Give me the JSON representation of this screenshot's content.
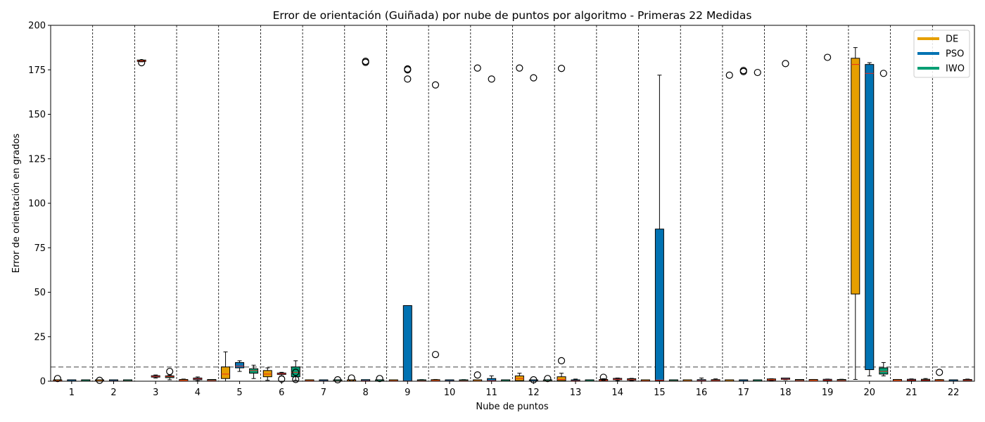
{
  "chart_data": {
    "type": "box",
    "title": "Error de orientación (Guiñada) por nube de puntos por algoritmo - Primeras 22 Medidas",
    "xlabel": "Nube de puntos",
    "ylabel": "Error de orientación en grados",
    "ylim": [
      0,
      200
    ],
    "yticks": [
      0,
      25,
      50,
      75,
      100,
      125,
      150,
      175,
      200
    ],
    "categories": [
      "1",
      "2",
      "3",
      "4",
      "5",
      "6",
      "7",
      "8",
      "9",
      "10",
      "11",
      "12",
      "13",
      "14",
      "15",
      "16",
      "17",
      "18",
      "19",
      "20",
      "21",
      "22"
    ],
    "reference_line": 8,
    "grid": "vertical dashed separators between groups",
    "legend_position": "top-right",
    "series": [
      {
        "name": "DE",
        "color": "#E69F00",
        "boxes": [
          {
            "whislo": 0,
            "q1": 0,
            "med": 0.2,
            "q3": 0.5,
            "whishi": 0.8,
            "fliers": [
              1.5
            ]
          },
          {
            "whislo": 0,
            "q1": 0,
            "med": 0.1,
            "q3": 0.2,
            "whishi": 0.4,
            "fliers": [
              0.5
            ]
          },
          {
            "whislo": 179.5,
            "q1": 179.7,
            "med": 180,
            "q3": 180.2,
            "whishi": 180.4,
            "fliers": [
              179
            ]
          },
          {
            "whislo": 0,
            "q1": 0.2,
            "med": 0.4,
            "q3": 0.7,
            "whishi": 1.2,
            "fliers": []
          },
          {
            "whislo": 0,
            "q1": 1.5,
            "med": 4,
            "q3": 8,
            "whishi": 16.5,
            "fliers": []
          },
          {
            "whislo": 0.5,
            "q1": 2.5,
            "med": 4,
            "q3": 6,
            "whishi": 7.5,
            "fliers": []
          },
          {
            "whislo": 0,
            "q1": 0,
            "med": 0.2,
            "q3": 0.5,
            "whishi": 0.8,
            "fliers": []
          },
          {
            "whislo": 0,
            "q1": 0,
            "med": 0.1,
            "q3": 0.3,
            "whishi": 0.6,
            "fliers": [
              1.8
            ]
          },
          {
            "whislo": 0,
            "q1": 0,
            "med": 0.2,
            "q3": 0.4,
            "whishi": 0.7,
            "fliers": []
          },
          {
            "whislo": 0,
            "q1": 0.1,
            "med": 0.3,
            "q3": 0.6,
            "whishi": 1,
            "fliers": [
              15,
              166.5
            ]
          },
          {
            "whislo": 0,
            "q1": 0,
            "med": 0.1,
            "q3": 0.2,
            "whishi": 0.4,
            "fliers": [
              3.5,
              176
            ]
          },
          {
            "whislo": 0,
            "q1": 0.3,
            "med": 1.5,
            "q3": 3,
            "whishi": 4.5,
            "fliers": [
              176
            ]
          },
          {
            "whislo": 0,
            "q1": 0.3,
            "med": 1,
            "q3": 2.5,
            "whishi": 4.5,
            "fliers": [
              11.5,
              175.8
            ]
          },
          {
            "whislo": 0,
            "q1": 0.2,
            "med": 0.5,
            "q3": 0.9,
            "whishi": 1.4,
            "fliers": [
              2.2
            ]
          },
          {
            "whislo": 0,
            "q1": 0,
            "med": 0.2,
            "q3": 0.4,
            "whishi": 0.7,
            "fliers": []
          },
          {
            "whislo": 0,
            "q1": 0,
            "med": 0.1,
            "q3": 0.3,
            "whishi": 0.5,
            "fliers": []
          },
          {
            "whislo": 0,
            "q1": 0,
            "med": 0.05,
            "q3": 0.1,
            "whishi": 0.2,
            "fliers": [
              172
            ]
          },
          {
            "whislo": 0.2,
            "q1": 0.5,
            "med": 0.8,
            "q3": 1.1,
            "whishi": 1.4,
            "fliers": []
          },
          {
            "whislo": 0,
            "q1": 0.2,
            "med": 0.4,
            "q3": 0.7,
            "whishi": 1,
            "fliers": []
          },
          {
            "whislo": 1,
            "q1": 49,
            "med": 178,
            "q3": 181.5,
            "whishi": 187.5,
            "fliers": []
          },
          {
            "whislo": 0,
            "q1": 0.2,
            "med": 0.4,
            "q3": 0.7,
            "whishi": 1,
            "fliers": []
          },
          {
            "whislo": 0,
            "q1": 0.1,
            "med": 0.3,
            "q3": 0.6,
            "whishi": 0.9,
            "fliers": [
              5
            ]
          }
        ]
      },
      {
        "name": "PSO",
        "color": "#0072B2",
        "boxes": [
          {
            "whislo": 0,
            "q1": 0,
            "med": 0.05,
            "q3": 0.1,
            "whishi": 0.2,
            "fliers": []
          },
          {
            "whislo": 0,
            "q1": 0,
            "med": 0.1,
            "q3": 0.2,
            "whishi": 0.3,
            "fliers": []
          },
          {
            "whislo": 1.8,
            "q1": 2.3,
            "med": 2.7,
            "q3": 3.1,
            "whishi": 3.5,
            "fliers": []
          },
          {
            "whislo": 0.2,
            "q1": 0.8,
            "med": 1.3,
            "q3": 1.8,
            "whishi": 2.4,
            "fliers": []
          },
          {
            "whislo": 5.5,
            "q1": 7.5,
            "med": 8.5,
            "q3": 10.5,
            "whishi": 11.5,
            "fliers": []
          },
          {
            "whislo": 3,
            "q1": 3.8,
            "med": 4.2,
            "q3": 4.6,
            "whishi": 5,
            "fliers": [
              1.2
            ]
          },
          {
            "whislo": 0,
            "q1": 0,
            "med": 0.1,
            "q3": 0.2,
            "whishi": 0.4,
            "fliers": []
          },
          {
            "whislo": 0,
            "q1": 0.1,
            "med": 0.2,
            "q3": 0.4,
            "whishi": 0.7,
            "fliers": [
              179.2,
              179.8
            ]
          },
          {
            "whislo": 0,
            "q1": 0,
            "med": 0.1,
            "q3": 42.5,
            "whishi": 42.5,
            "fliers": [
              169.8,
              175,
              175.5
            ]
          },
          {
            "whislo": 0,
            "q1": 0,
            "med": 0.1,
            "q3": 0.3,
            "whishi": 0.5,
            "fliers": []
          },
          {
            "whislo": 0,
            "q1": 0.1,
            "med": 0.3,
            "q3": 1.5,
            "whishi": 3,
            "fliers": [
              169.8
            ]
          },
          {
            "whislo": 0,
            "q1": 0,
            "med": 0.05,
            "q3": 0.1,
            "whishi": 0.2,
            "fliers": [
              0.8,
              170.5
            ]
          },
          {
            "whislo": 0,
            "q1": 0,
            "med": 0.2,
            "q3": 0.5,
            "whishi": 1.2,
            "fliers": []
          },
          {
            "whislo": 0.3,
            "q1": 0.8,
            "med": 1.1,
            "q3": 1.4,
            "whishi": 1.8,
            "fliers": []
          },
          {
            "whislo": 0,
            "q1": 0.3,
            "med": 0.6,
            "q3": 85.5,
            "whishi": 172,
            "fliers": []
          },
          {
            "whislo": 0,
            "q1": 0.1,
            "med": 0.3,
            "q3": 0.8,
            "whishi": 1.8,
            "fliers": []
          },
          {
            "whislo": 0,
            "q1": 0,
            "med": 0.05,
            "q3": 0.1,
            "whishi": 0.2,
            "fliers": [
              174,
              174.6
            ]
          },
          {
            "whislo": 0.8,
            "q1": 1,
            "med": 1.2,
            "q3": 1.4,
            "whishi": 1.6,
            "fliers": [
              178.5
            ]
          },
          {
            "whislo": 0,
            "q1": 0.3,
            "med": 0.6,
            "q3": 0.9,
            "whishi": 1.2,
            "fliers": [
              182
            ]
          },
          {
            "whislo": 3,
            "q1": 6.5,
            "med": 173,
            "q3": 178,
            "whishi": 179,
            "fliers": []
          },
          {
            "whislo": 0,
            "q1": 0.3,
            "med": 0.6,
            "q3": 0.9,
            "whishi": 1.3,
            "fliers": []
          },
          {
            "whislo": 0,
            "q1": 0,
            "med": 0.05,
            "q3": 0.1,
            "whishi": 0.2,
            "fliers": []
          }
        ]
      },
      {
        "name": "IWO",
        "color": "#009E73",
        "boxes": [
          {
            "whislo": 0,
            "q1": 0,
            "med": 0.05,
            "q3": 0.1,
            "whishi": 0.15,
            "fliers": []
          },
          {
            "whislo": 0,
            "q1": 0,
            "med": 0.1,
            "q3": 0.2,
            "whishi": 0.3,
            "fliers": []
          },
          {
            "whislo": 0.8,
            "q1": 2,
            "med": 2.6,
            "q3": 3,
            "whishi": 3.5,
            "fliers": [
              5.5
            ]
          },
          {
            "whislo": 0,
            "q1": 0.2,
            "med": 0.4,
            "q3": 0.6,
            "whishi": 0.9,
            "fliers": []
          },
          {
            "whislo": 1.5,
            "q1": 4.5,
            "med": 6,
            "q3": 7,
            "whishi": 9,
            "fliers": []
          },
          {
            "whislo": 0.5,
            "q1": 2.5,
            "med": 5,
            "q3": 8,
            "whishi": 11.5,
            "fliers": [
              5,
              1
            ]
          },
          {
            "whislo": 0,
            "q1": 0,
            "med": 0.1,
            "q3": 0.2,
            "whishi": 0.4,
            "fliers": [
              0.8
            ]
          },
          {
            "whislo": 0,
            "q1": 0,
            "med": 0.05,
            "q3": 0.1,
            "whishi": 0.2,
            "fliers": [
              1.5
            ]
          },
          {
            "whislo": 0,
            "q1": 0,
            "med": 0.2,
            "q3": 0.5,
            "whishi": 0.9,
            "fliers": []
          },
          {
            "whislo": 0,
            "q1": 0,
            "med": 0.2,
            "q3": 0.5,
            "whishi": 0.9,
            "fliers": []
          },
          {
            "whislo": 0,
            "q1": 0,
            "med": 0.05,
            "q3": 0.1,
            "whishi": 0.2,
            "fliers": []
          },
          {
            "whislo": 0,
            "q1": 0,
            "med": 0.1,
            "q3": 0.3,
            "whishi": 0.5,
            "fliers": [
              1.5
            ]
          },
          {
            "whislo": 0,
            "q1": 0,
            "med": 0.05,
            "q3": 0.1,
            "whishi": 0.2,
            "fliers": []
          },
          {
            "whislo": 0.2,
            "q1": 0.6,
            "med": 0.9,
            "q3": 1.2,
            "whishi": 1.6,
            "fliers": []
          },
          {
            "whislo": 0,
            "q1": 0,
            "med": 0.1,
            "q3": 0.3,
            "whishi": 0.6,
            "fliers": []
          },
          {
            "whislo": 0,
            "q1": 0.1,
            "med": 0.4,
            "q3": 0.8,
            "whishi": 1.3,
            "fliers": []
          },
          {
            "whislo": 0,
            "q1": 0,
            "med": 0.05,
            "q3": 0.1,
            "whishi": 0.2,
            "fliers": [
              173.5
            ]
          },
          {
            "whislo": 0,
            "q1": 0.2,
            "med": 0.4,
            "q3": 0.6,
            "whishi": 0.9,
            "fliers": []
          },
          {
            "whislo": 0,
            "q1": 0.2,
            "med": 0.4,
            "q3": 0.7,
            "whishi": 1.1,
            "fliers": []
          },
          {
            "whislo": 3,
            "q1": 4,
            "med": 5.5,
            "q3": 7.5,
            "whishi": 10.5,
            "fliers": [
              173
            ]
          },
          {
            "whislo": 0,
            "q1": 0.3,
            "med": 0.6,
            "q3": 1,
            "whishi": 1.5,
            "fliers": []
          },
          {
            "whislo": 0,
            "q1": 0.2,
            "med": 0.5,
            "q3": 0.8,
            "whishi": 1.2,
            "fliers": []
          }
        ]
      }
    ]
  }
}
